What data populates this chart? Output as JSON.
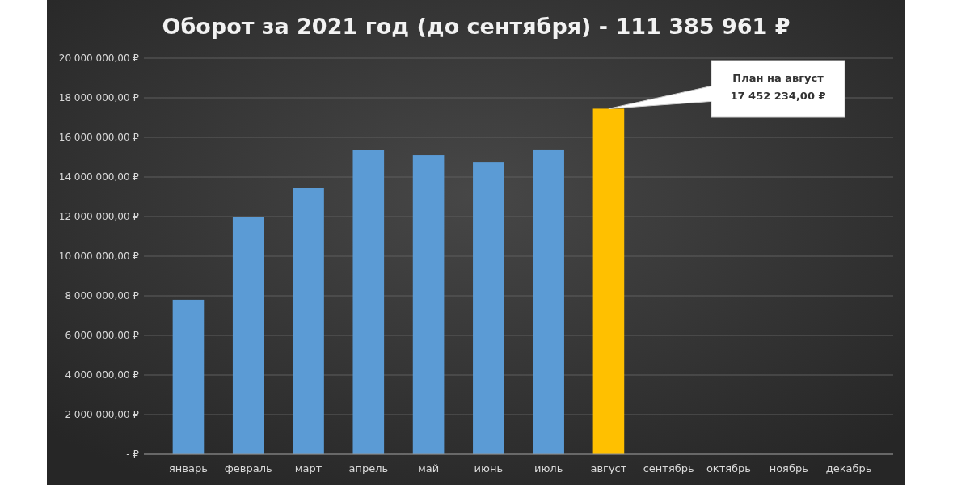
{
  "chart_data": {
    "type": "bar",
    "title": "Оборот за 2021 год (до сентября) - 111 385 961 ₽",
    "categories": [
      "январь",
      "февраль",
      "март",
      "апрель",
      "май",
      "июнь",
      "июль",
      "август",
      "сентябрь",
      "октябрь",
      "ноябрь",
      "декабрь"
    ],
    "values": [
      7800000,
      11960000,
      13430000,
      15350000,
      15100000,
      14730000,
      15390000,
      17452234,
      null,
      null,
      null,
      null
    ],
    "colors": [
      "#5b9bd5",
      "#5b9bd5",
      "#5b9bd5",
      "#5b9bd5",
      "#5b9bd5",
      "#5b9bd5",
      "#5b9bd5",
      "#ffc000",
      "#5b9bd5",
      "#5b9bd5",
      "#5b9bd5",
      "#5b9bd5"
    ],
    "ylim": [
      0,
      20000000
    ],
    "yticks": [
      {
        "value": 0,
        "label": "-   ₽"
      },
      {
        "value": 2000000,
        "label": "2 000 000,00 ₽"
      },
      {
        "value": 4000000,
        "label": "4 000 000,00 ₽"
      },
      {
        "value": 6000000,
        "label": "6 000 000,00 ₽"
      },
      {
        "value": 8000000,
        "label": "8 000 000,00 ₽"
      },
      {
        "value": 10000000,
        "label": "10 000 000,00 ₽"
      },
      {
        "value": 12000000,
        "label": "12 000 000,00 ₽"
      },
      {
        "value": 14000000,
        "label": "14 000 000,00 ₽"
      },
      {
        "value": 16000000,
        "label": "16 000 000,00 ₽"
      },
      {
        "value": 18000000,
        "label": "18 000 000,00 ₽"
      },
      {
        "value": 20000000,
        "label": "20 000 000,00 ₽"
      }
    ],
    "grid": "y",
    "annotations": [
      "План на август\n17 452 234,00 ₽"
    ]
  }
}
